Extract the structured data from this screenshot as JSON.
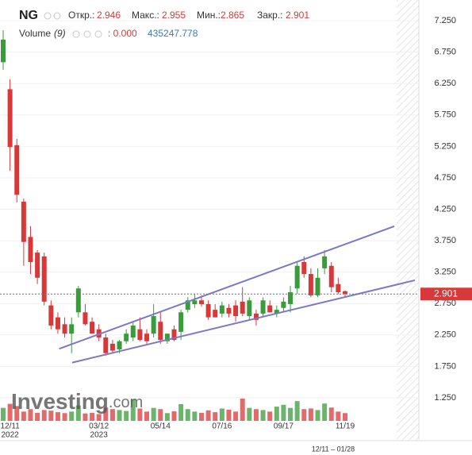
{
  "header": {
    "symbol": "NG",
    "open_label": "Откр.:",
    "high_label": "Макс.:",
    "low_label": "Мин.:",
    "close_label": "Закр.:",
    "volume_title": "Volume",
    "volume_period": "(9)",
    "volume_value": ": 0.000",
    "volume_ma": 435247.778,
    "range_text": "12/11 – 01/28"
  },
  "watermark": {
    "brand": "Investing",
    "suffix": ".com"
  },
  "chart_data": {
    "type": "candlestick",
    "categories": [
      null,
      "12/11",
      null,
      null,
      null,
      null,
      null,
      null,
      null,
      null,
      null,
      null,
      null,
      null,
      "03/12",
      null,
      null,
      null,
      null,
      null,
      null,
      null,
      null,
      "05/14",
      null,
      null,
      null,
      null,
      null,
      null,
      null,
      null,
      "07/16",
      null,
      null,
      null,
      null,
      null,
      null,
      null,
      null,
      "09/17",
      null,
      null,
      null,
      null,
      null,
      null,
      null,
      null,
      "11/19"
    ],
    "category_years": [
      null,
      "2022",
      null,
      null,
      null,
      null,
      null,
      null,
      null,
      null,
      null,
      null,
      null,
      null,
      "2023",
      null,
      null,
      null,
      null,
      null,
      null,
      null,
      null,
      null,
      null,
      null,
      null,
      null,
      null,
      null,
      null,
      null,
      null,
      null,
      null,
      null,
      null,
      null,
      null,
      null,
      null,
      null,
      null,
      null,
      null,
      null,
      null,
      null,
      null,
      null,
      null
    ],
    "open": [
      6.59,
      6.16,
      5.27,
      4.37,
      3.81,
      3.56,
      3.5,
      2.72,
      2.53,
      2.42,
      2.27,
      2.61,
      2.61,
      2.46,
      2.34,
      2.21,
      2.11,
      2.02,
      2.15,
      2.21,
      2.34,
      2.27,
      2.27,
      2.46,
      2.15,
      2.34,
      2.3,
      2.65,
      2.74,
      2.8,
      2.74,
      2.65,
      2.59,
      2.68,
      2.72,
      2.78,
      2.55,
      2.59,
      2.59,
      2.72,
      2.59,
      2.68,
      2.74,
      2.99,
      3.41,
      3.22,
      2.88,
      3.31,
      3.35,
      3.06,
      2.946
    ],
    "high": [
      7.1,
      6.32,
      5.37,
      4.42,
      3.98,
      3.6,
      3.56,
      2.8,
      2.61,
      2.53,
      2.53,
      3.03,
      2.74,
      2.53,
      2.42,
      2.27,
      2.17,
      2.17,
      2.34,
      2.46,
      2.53,
      2.34,
      2.74,
      2.61,
      2.27,
      2.4,
      2.65,
      2.85,
      2.9,
      2.88,
      2.8,
      2.74,
      2.78,
      2.74,
      2.8,
      3.01,
      2.85,
      2.65,
      2.85,
      2.8,
      2.72,
      2.85,
      3.03,
      3.41,
      3.5,
      3.31,
      3.31,
      3.6,
      3.41,
      3.16,
      2.955
    ],
    "low": [
      6.47,
      4.86,
      4.36,
      3.35,
      3.22,
      3.06,
      2.72,
      2.34,
      2.27,
      2.21,
      1.96,
      2.53,
      2.4,
      2.27,
      2.15,
      1.92,
      1.96,
      1.96,
      2.11,
      2.15,
      2.15,
      2.11,
      2.21,
      2.11,
      2.11,
      2.15,
      2.17,
      2.61,
      2.68,
      2.7,
      2.49,
      2.53,
      2.53,
      2.53,
      2.46,
      2.55,
      2.49,
      2.4,
      2.53,
      2.61,
      2.53,
      2.61,
      2.61,
      2.9,
      3.16,
      2.85,
      2.85,
      3.22,
      2.93,
      2.9,
      2.865
    ],
    "close": [
      6.95,
      5.24,
      4.48,
      3.73,
      3.41,
      3.16,
      2.78,
      2.4,
      2.34,
      2.27,
      2.42,
      2.99,
      2.42,
      2.27,
      2.21,
      1.96,
      2.0,
      2.15,
      2.27,
      2.4,
      2.17,
      2.15,
      2.55,
      2.17,
      2.27,
      2.17,
      2.61,
      2.8,
      2.8,
      2.74,
      2.53,
      2.53,
      2.72,
      2.59,
      2.55,
      2.59,
      2.8,
      2.49,
      2.8,
      2.61,
      2.65,
      2.78,
      2.93,
      3.35,
      3.22,
      2.88,
      3.16,
      3.5,
      3.01,
      2.93,
      2.901
    ],
    "volume": [
      420000,
      550000,
      480000,
      300000,
      380000,
      260000,
      350000,
      330000,
      280000,
      250000,
      300000,
      500000,
      240000,
      260000,
      220000,
      430000,
      380000,
      350000,
      320000,
      700000,
      400000,
      300000,
      420000,
      380000,
      250000,
      310000,
      540000,
      380000,
      300000,
      260000,
      340000,
      280000,
      400000,
      360000,
      300000,
      720000,
      420000,
      380000,
      350000,
      300000,
      460000,
      520000,
      420000,
      640000,
      380000,
      400000,
      350000,
      560000,
      430000,
      300000,
      250000
    ],
    "volume_ylim": [
      0,
      1800000
    ],
    "up_color": "#3a9b3a",
    "down_color": "#d93838",
    "ylim": [
      0.63,
      7.58
    ],
    "yticks": [
      {
        "value": 1.25,
        "label": "1.250"
      },
      {
        "value": 1.75,
        "label": "1.750"
      },
      {
        "value": 2.25,
        "label": "2.250"
      },
      {
        "value": 2.75,
        "label": "2.750"
      },
      {
        "value": 3.25,
        "label": "3.250"
      },
      {
        "value": 3.75,
        "label": "3.750"
      },
      {
        "value": 4.25,
        "label": "4.250"
      },
      {
        "value": 4.75,
        "label": "4.750"
      },
      {
        "value": 5.25,
        "label": "5.250"
      },
      {
        "value": 5.75,
        "label": "5.750"
      },
      {
        "value": 6.25,
        "label": "6.250"
      },
      {
        "value": 6.75,
        "label": "6.750"
      },
      {
        "value": 7.25,
        "label": "7.250"
      }
    ],
    "grid": true,
    "trendlines": [
      {
        "x": [
          8.2,
          57.2
        ],
        "y": [
          2.03,
          3.98
        ],
        "color": "#7b78c8"
      },
      {
        "x": [
          10.1,
          60.2
        ],
        "y": [
          1.81,
          3.12
        ],
        "color": "#7b78c8"
      }
    ]
  }
}
